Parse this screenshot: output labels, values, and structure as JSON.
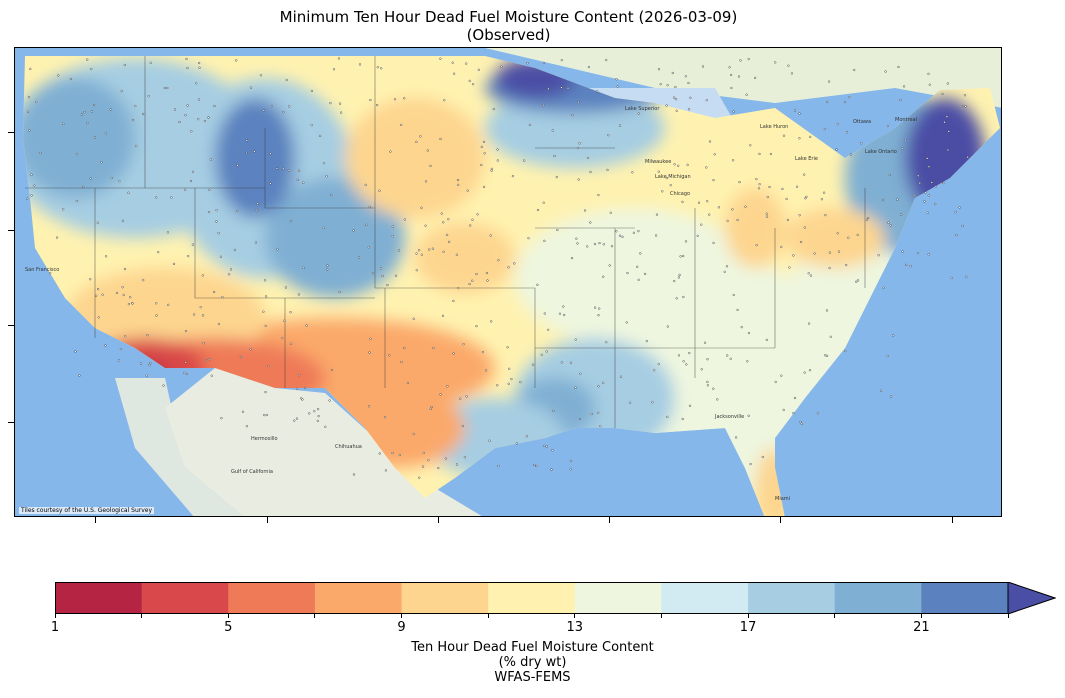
{
  "title_line1": "Minimum Ten Hour Dead Fuel Moisture Content (2026-03-09)",
  "title_line2": "(Observed)",
  "map": {
    "attribution": "Tiles courtesy of the U.S. Geological Survey",
    "basemap_colors": {
      "ocean": "#6aa6e6",
      "ocean_shallow": "#a9cdf2",
      "land": "#eef1e6",
      "canada": "#e8efd8",
      "mexico": "#e9ece0"
    },
    "place_labels": [
      "San Francisco",
      "Chihuahua",
      "Hermosillo",
      "Gulf of California",
      "Lake Superior",
      "Lake Huron",
      "Lake Michigan",
      "Lake Erie",
      "Lake Ontario",
      "Milwaukee",
      "Chicago",
      "Jacksonville",
      "Miami",
      "Ottawa",
      "Montreal"
    ],
    "field_colors": {
      "dry_southwest": "#f07a5a",
      "very_dry_socal": "#d8414b",
      "moderate_plains": "#fdd08a",
      "near_normal": "#fff2b0",
      "moist": "#eef6dc",
      "wet_pnw_rockies": "#9ec4e0",
      "very_wet_northeast": "#4a4fa3"
    }
  },
  "colorbar": {
    "label_line1": "Ten Hour Dead Fuel Moisture Content",
    "label_line2": "(% dry wt)",
    "label_line3": "WFAS-FEMS",
    "bounds": [
      1,
      3,
      5,
      7,
      9,
      11,
      13,
      15,
      17,
      19,
      21,
      23
    ],
    "tick_labels": [
      "1",
      "5",
      "9",
      "13",
      "17",
      "21"
    ],
    "colors": [
      "#b52443",
      "#d9484a",
      "#ef7a58",
      "#fba96b",
      "#fdd58f",
      "#fff2b0",
      "#eef6df",
      "#d2ebf2",
      "#a6cde2",
      "#7fafd3",
      "#5b82bf"
    ],
    "extend_max_color": "#4b4ea5"
  }
}
